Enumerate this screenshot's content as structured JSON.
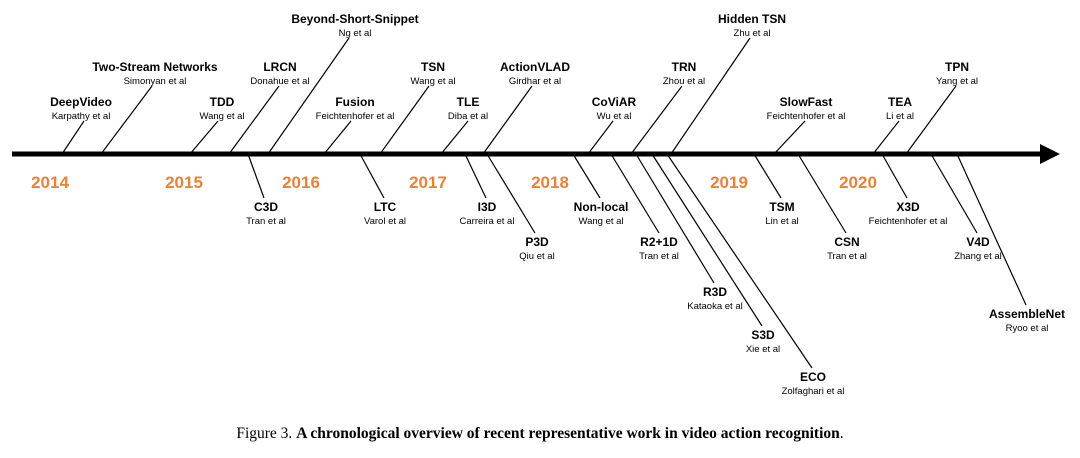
{
  "years": [
    "2014",
    "2015",
    "2016",
    "2017",
    "2018",
    "2019",
    "2020"
  ],
  "works": [
    {
      "name": "DeepVideo",
      "authors": "Karpathy et al"
    },
    {
      "name": "Two-Stream Networks",
      "authors": "Simonyan et al"
    },
    {
      "name": "TDD",
      "authors": "Wang et al"
    },
    {
      "name": "LRCN",
      "authors": "Donahue et al"
    },
    {
      "name": "Beyond-Short-Snippet",
      "authors": "Ng et al"
    },
    {
      "name": "Fusion",
      "authors": "Feichtenhofer et al"
    },
    {
      "name": "TSN",
      "authors": "Wang et al"
    },
    {
      "name": "TLE",
      "authors": "Diba et al"
    },
    {
      "name": "ActionVLAD",
      "authors": "Girdhar et al"
    },
    {
      "name": "CoViAR",
      "authors": "Wu et al"
    },
    {
      "name": "TRN",
      "authors": "Zhou et al"
    },
    {
      "name": "Hidden TSN",
      "authors": "Zhu et al"
    },
    {
      "name": "SlowFast",
      "authors": "Feichtenhofer et al"
    },
    {
      "name": "TEA",
      "authors": "Li et al"
    },
    {
      "name": "TPN",
      "authors": "Yang et al"
    },
    {
      "name": "C3D",
      "authors": "Tran et al"
    },
    {
      "name": "LTC",
      "authors": "Varol et al"
    },
    {
      "name": "I3D",
      "authors": "Carreira et al"
    },
    {
      "name": "P3D",
      "authors": "Qiu et al"
    },
    {
      "name": "Non-local",
      "authors": "Wang et al"
    },
    {
      "name": "R2+1D",
      "authors": "Tran et al"
    },
    {
      "name": "R3D",
      "authors": "Kataoka et al"
    },
    {
      "name": "S3D",
      "authors": "Xie et al"
    },
    {
      "name": "ECO",
      "authors": "Zolfaghari et al"
    },
    {
      "name": "TSM",
      "authors": "Lin et al"
    },
    {
      "name": "CSN",
      "authors": "Tran et al"
    },
    {
      "name": "X3D",
      "authors": "Feichtenhofer et al"
    },
    {
      "name": "V4D",
      "authors": "Zhang et al"
    },
    {
      "name": "AssembleNet",
      "authors": "Ryoo et al"
    }
  ],
  "caption": {
    "prefix": "Figure 3. ",
    "title": "A chronological overview of recent representative work in video action recognition",
    "suffix": "."
  },
  "colors": {
    "year": "#e8823a",
    "line": "#000000"
  }
}
